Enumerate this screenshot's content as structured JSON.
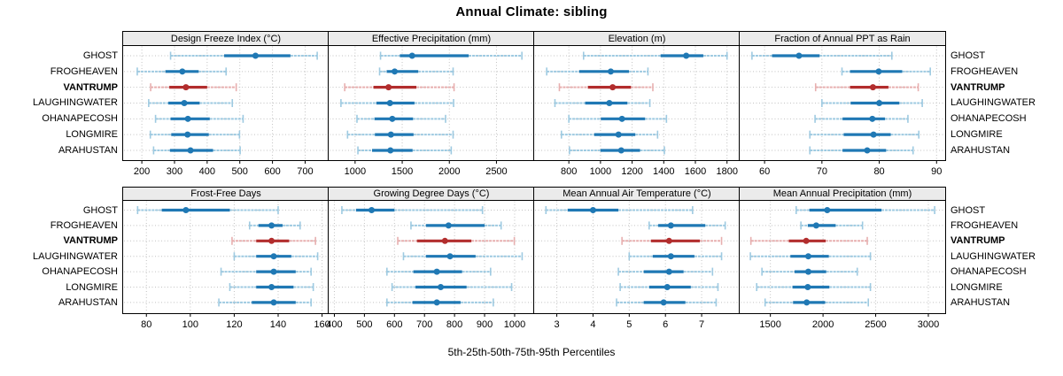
{
  "title": "Annual Climate: sibling",
  "xlabel": "5th-25th-50th-75th-95th Percentiles",
  "colors": {
    "normal_dark": "#1f78b4",
    "normal_light": "#9ecae1",
    "highlight_dark": "#b22d2d",
    "highlight_light": "#e7afaf",
    "strip_bg": "#ebebeb",
    "grid": "#c2c2c2",
    "panel_border": "#000000"
  },
  "chart_data": {
    "type": "dotplot-percentiles",
    "percentiles": [
      5,
      25,
      50,
      75,
      95
    ],
    "sites": [
      "GHOST",
      "FROGHEAVEN",
      "VANTRUMP",
      "LAUGHINGWATER",
      "OHANAPECOSH",
      "LONGMIRE",
      "ARAHUSTAN"
    ],
    "highlight_site": "VANTRUMP",
    "legend_note": "row order top to bottom; values are 5th,25th,50th,75th,95th percentiles",
    "panels": [
      {
        "title": "Design Freeze Index (°C)",
        "grid_row": 0,
        "grid_col": 0,
        "domain": [
          140,
          772
        ],
        "ticks": [
          200,
          300,
          400,
          500,
          600,
          700
        ],
        "values": [
          [
            288,
            452,
            548,
            655,
            737
          ],
          [
            186,
            272,
            324,
            374,
            458
          ],
          [
            227,
            284,
            335,
            400,
            489
          ],
          [
            221,
            281,
            330,
            377,
            477
          ],
          [
            242,
            288,
            341,
            408,
            510
          ],
          [
            226,
            290,
            340,
            405,
            499
          ],
          [
            236,
            286,
            349,
            418,
            501
          ]
        ]
      },
      {
        "title": "Effective Precipitation (mm)",
        "grid_row": 0,
        "grid_col": 1,
        "domain": [
          710,
          2900
        ],
        "ticks": [
          1000,
          1500,
          2000,
          2500
        ],
        "values": [
          [
            1270,
            1475,
            1605,
            2205,
            2770
          ],
          [
            1260,
            1335,
            1420,
            1670,
            2040
          ],
          [
            890,
            1195,
            1355,
            1650,
            2050
          ],
          [
            850,
            1225,
            1370,
            1630,
            2045
          ],
          [
            1020,
            1205,
            1395,
            1615,
            1960
          ],
          [
            920,
            1210,
            1380,
            1620,
            2040
          ],
          [
            1030,
            1180,
            1375,
            1610,
            2020
          ]
        ]
      },
      {
        "title": "Elevation (m)",
        "grid_row": 0,
        "grid_col": 2,
        "domain": [
          575,
          1880
        ],
        "ticks": [
          800,
          1000,
          1200,
          1400,
          1600,
          1800
        ],
        "values": [
          [
            893,
            1380,
            1542,
            1650,
            1800
          ],
          [
            660,
            865,
            1065,
            1180,
            1300
          ],
          [
            740,
            920,
            1077,
            1193,
            1331
          ],
          [
            712,
            903,
            1056,
            1170,
            1312
          ],
          [
            800,
            1002,
            1136,
            1282,
            1417
          ],
          [
            753,
            960,
            1114,
            1220,
            1361
          ],
          [
            804,
            1000,
            1131,
            1250,
            1404
          ]
        ]
      },
      {
        "title": "Fraction of Annual PPT as Rain",
        "grid_row": 0,
        "grid_col": 3,
        "domain": [
          55.5,
          91.5
        ],
        "ticks": [
          60,
          70,
          80,
          90
        ],
        "values": [
          [
            57.8,
            61.3,
            66,
            69.6,
            82.2
          ],
          [
            73.5,
            74.9,
            79.9,
            84,
            88.9
          ],
          [
            68.9,
            74.9,
            78.9,
            81.6,
            86.8
          ],
          [
            70,
            75,
            80,
            83.5,
            87.5
          ],
          [
            68.8,
            73.6,
            78.8,
            81,
            85
          ],
          [
            67.9,
            73.8,
            79,
            82,
            86.9
          ],
          [
            67.9,
            73.6,
            77.9,
            81.2,
            85.9
          ]
        ]
      },
      {
        "title": "Frost-Free Days",
        "grid_row": 1,
        "grid_col": 0,
        "domain": [
          69,
          163
        ],
        "ticks": [
          80,
          100,
          120,
          140,
          160
        ],
        "values": [
          [
            76,
            87,
            98,
            118,
            140
          ],
          [
            127,
            131,
            137,
            142,
            150
          ],
          [
            119,
            130,
            137,
            145,
            157
          ],
          [
            120,
            130,
            138,
            146,
            158
          ],
          [
            114,
            130,
            138,
            148,
            155
          ],
          [
            118,
            130,
            137,
            147,
            156
          ],
          [
            113,
            128,
            138,
            148,
            155
          ]
        ]
      },
      {
        "title": "Growing Degree Days (°C)",
        "grid_row": 1,
        "grid_col": 1,
        "domain": [
          378,
          1065
        ],
        "ticks": [
          400,
          500,
          600,
          700,
          800,
          900,
          1000
        ],
        "values": [
          [
            425,
            472,
            524,
            600,
            893
          ],
          [
            655,
            705,
            780,
            900,
            955
          ],
          [
            611,
            675,
            768,
            856,
            999
          ],
          [
            630,
            705,
            785,
            870,
            1025
          ],
          [
            575,
            663,
            741,
            825,
            920
          ],
          [
            592,
            670,
            754,
            840,
            990
          ],
          [
            575,
            660,
            741,
            820,
            929
          ]
        ]
      },
      {
        "title": "Mean Annual Air Temperature (°C)",
        "grid_row": 1,
        "grid_col": 2,
        "domain": [
          2.35,
          8.05
        ],
        "ticks": [
          3,
          4,
          5,
          6,
          7
        ],
        "values": [
          [
            2.7,
            3.3,
            4.0,
            4.7,
            6.75
          ],
          [
            5.55,
            5.8,
            6.15,
            7.1,
            7.65
          ],
          [
            4.8,
            5.6,
            6.1,
            6.95,
            7.55
          ],
          [
            5.0,
            5.65,
            6.15,
            6.8,
            7.55
          ],
          [
            4.7,
            5.4,
            6.1,
            6.5,
            7.3
          ],
          [
            4.75,
            5.55,
            6.05,
            6.7,
            7.45
          ],
          [
            4.65,
            5.4,
            5.95,
            6.55,
            7.4
          ]
        ]
      },
      {
        "title": "Mean Annual Precipitation (mm)",
        "grid_row": 1,
        "grid_col": 3,
        "domain": [
          1200,
          3160
        ],
        "ticks": [
          1500,
          2000,
          2500,
          3000
        ],
        "values": [
          [
            1745,
            1870,
            2040,
            2555,
            3060
          ],
          [
            1790,
            1855,
            1935,
            2120,
            2375
          ],
          [
            1315,
            1675,
            1840,
            2025,
            2420
          ],
          [
            1310,
            1690,
            1860,
            2055,
            2450
          ],
          [
            1420,
            1730,
            1860,
            2030,
            2325
          ],
          [
            1370,
            1710,
            1855,
            2060,
            2450
          ],
          [
            1450,
            1715,
            1845,
            2020,
            2430
          ]
        ]
      }
    ]
  }
}
